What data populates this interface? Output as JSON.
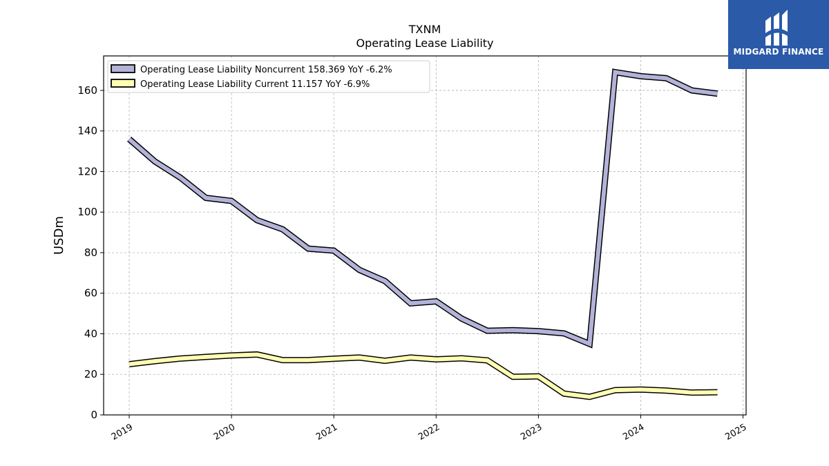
{
  "chart_data": {
    "type": "line",
    "title": "TXNM",
    "subtitle": "Operating Lease Liability",
    "ylabel": "USDm",
    "xlabel": "",
    "ylim": [
      0,
      177
    ],
    "xlim": [
      2018.75,
      2025.03
    ],
    "grid": true,
    "legend_position": "top-left",
    "x_ticks": [
      "2019",
      "2020",
      "2021",
      "2022",
      "2023",
      "2024",
      "2025"
    ],
    "y_ticks": [
      "0",
      "20",
      "40",
      "60",
      "80",
      "100",
      "120",
      "140",
      "160"
    ],
    "x": [
      2019.0,
      2019.25,
      2019.5,
      2019.75,
      2020.0,
      2020.25,
      2020.5,
      2020.75,
      2021.0,
      2021.25,
      2021.5,
      2021.75,
      2022.0,
      2022.25,
      2022.5,
      2022.75,
      2023.0,
      2023.25,
      2023.5,
      2023.75,
      2024.0,
      2024.25,
      2024.5,
      2024.75
    ],
    "series": [
      {
        "name": "Operating Lease Liability Noncurrent",
        "legend_label": "Operating Lease Liability Noncurrent  158.369 YoY -6.2%",
        "color": "#b3b3d9",
        "values": [
          136,
          125,
          117,
          107,
          105.5,
          96,
          91.5,
          82,
          81,
          71.5,
          66,
          55,
          56,
          47.5,
          41.5,
          41.8,
          41.3,
          40.2,
          35,
          169,
          167,
          166,
          160,
          158.4
        ]
      },
      {
        "name": "Operating Lease Liability Current",
        "legend_label": "Operating Lease Liability Current  11.157 YoY -6.9%",
        "color": "#ffffb3",
        "values": [
          25,
          26.5,
          27.8,
          28.6,
          29.3,
          29.8,
          27,
          27,
          27.7,
          28.3,
          26.7,
          28.3,
          27.4,
          27.9,
          26.9,
          18.8,
          19,
          10.5,
          8.9,
          12.2,
          12.5,
          12,
          11,
          11.2
        ]
      }
    ]
  },
  "logo": {
    "text": "MIDGARD FINANCE",
    "bg_color": "#2a5aa8"
  }
}
